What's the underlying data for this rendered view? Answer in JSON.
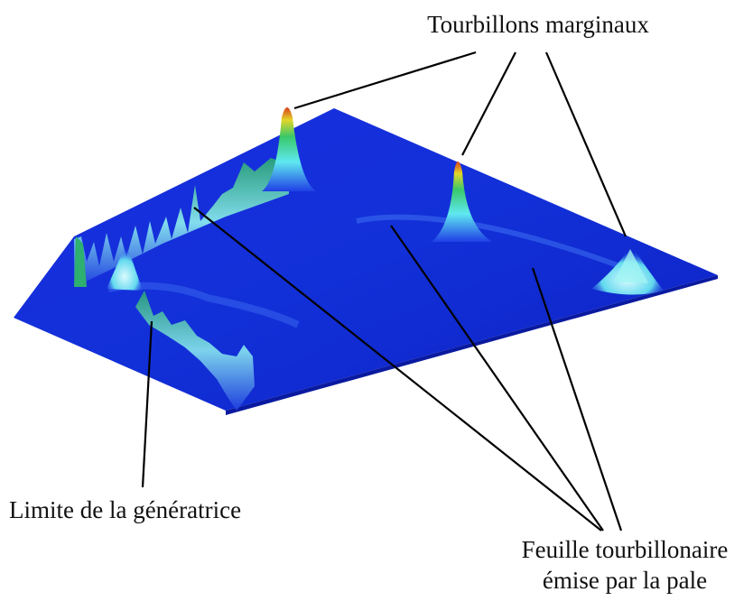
{
  "labels": {
    "top": "Tourbillons marginaux",
    "left": "Limite de la génératrice",
    "bottom": [
      "Feuille tourbillonaire",
      "émise par la pale"
    ]
  }
}
